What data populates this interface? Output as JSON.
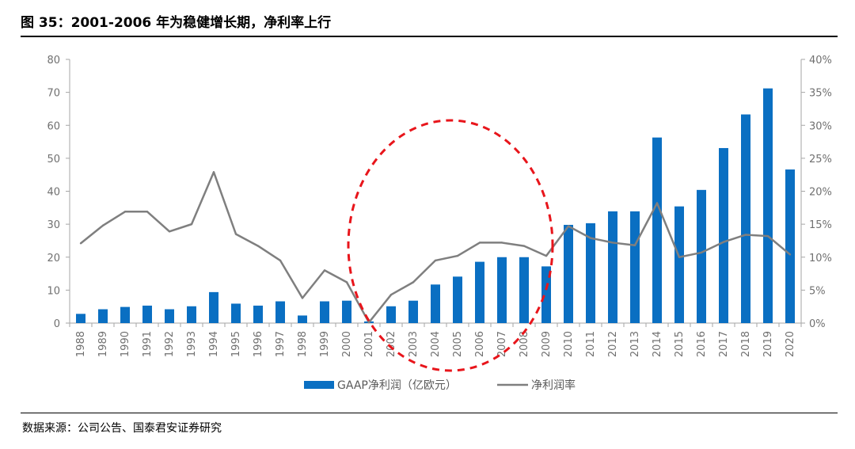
{
  "title": "图 35：2001-2006 年为稳健增长期，净利率上行",
  "source": "数据来源：公司公告、国泰君安证券研究",
  "chart_data": {
    "type": "bar+line",
    "categories": [
      "1988",
      "1989",
      "1990",
      "1991",
      "1992",
      "1993",
      "1994",
      "1995",
      "1996",
      "1997",
      "1998",
      "1999",
      "2000",
      "2001",
      "2002",
      "2003",
      "2004",
      "2005",
      "2006",
      "2007",
      "2008",
      "2009",
      "2010",
      "2011",
      "2012",
      "2013",
      "2014",
      "2015",
      "2016",
      "2017",
      "2018",
      "2019",
      "2020"
    ],
    "series": [
      {
        "name": "GAAP净利润（亿欧元）",
        "type": "bar",
        "axis": "left",
        "color": "#0a6fc2",
        "values": [
          2.8,
          4.2,
          4.9,
          5.3,
          4.2,
          5.1,
          9.4,
          5.9,
          5.3,
          6.6,
          2.3,
          6.6,
          6.8,
          0.5,
          5.1,
          6.8,
          11.7,
          14.1,
          18.6,
          20.0,
          20.0,
          17.2,
          29.8,
          30.3,
          33.9,
          33.9,
          56.3,
          35.4,
          40.4,
          53.1,
          63.3,
          71.2,
          46.6
        ]
      },
      {
        "name": "净利润率",
        "type": "line",
        "axis": "right",
        "color": "#7f7f7f",
        "values": [
          12.1,
          14.8,
          16.9,
          16.9,
          13.9,
          15.0,
          22.9,
          13.5,
          11.7,
          9.5,
          3.8,
          8.0,
          6.2,
          0.1,
          4.3,
          6.2,
          9.5,
          10.2,
          12.2,
          12.2,
          11.7,
          10.2,
          14.7,
          12.9,
          12.2,
          11.8,
          18.2,
          10.0,
          10.7,
          12.3,
          13.4,
          13.2,
          10.4
        ]
      }
    ],
    "y_left": {
      "min": 0,
      "max": 80,
      "step": 10,
      "ticks": [
        "0",
        "10",
        "20",
        "30",
        "40",
        "50",
        "60",
        "70",
        "80"
      ]
    },
    "y_right": {
      "min": 0,
      "max": 40,
      "step": 5,
      "ticks": [
        "0%",
        "5%",
        "10%",
        "15%",
        "20%",
        "25%",
        "30%",
        "35%",
        "40%"
      ]
    },
    "annotation": {
      "shape": "dashed-ellipse",
      "color": "#e8151b",
      "covers": [
        "2001",
        "2009"
      ]
    },
    "legend_position": "bottom-center",
    "grid": false
  }
}
